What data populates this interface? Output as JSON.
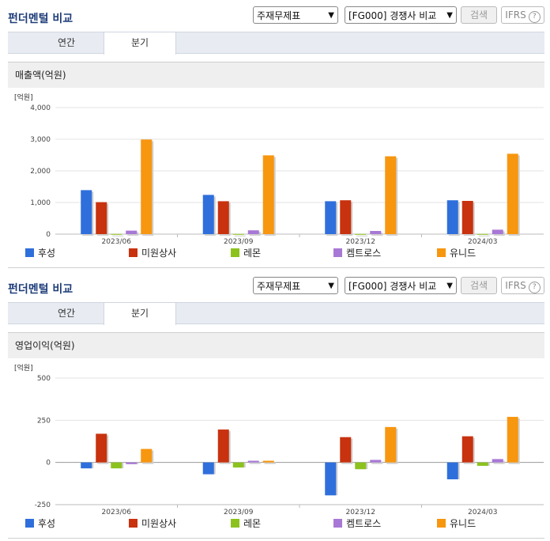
{
  "header": {
    "title": "펀더멘털 비교",
    "select_1": "주재무제표",
    "select_2": "[FG000] 경쟁사 비교",
    "search_label": "검색",
    "ifrs_label": "IFRS"
  },
  "tabs": [
    "연간",
    "분기"
  ],
  "colors": [
    "#2f6fdc",
    "#c8320f",
    "#8cc21e",
    "#a878d6",
    "#f7960f"
  ],
  "chart_data": [
    {
      "type": "bar",
      "title": "매출액(억원)",
      "unit_label": "[억원]",
      "categories": [
        "2023/06",
        "2023/09",
        "2023/12",
        "2024/03"
      ],
      "series": [
        {
          "name": "후성",
          "values": [
            1390,
            1240,
            1040,
            1070
          ]
        },
        {
          "name": "미원상사",
          "values": [
            1010,
            1040,
            1070,
            1050
          ]
        },
        {
          "name": "레몬",
          "values": [
            5,
            5,
            5,
            5
          ]
        },
        {
          "name": "켐트로스",
          "values": [
            110,
            120,
            100,
            140
          ]
        },
        {
          "name": "유니드",
          "values": [
            2990,
            2490,
            2460,
            2540
          ]
        }
      ],
      "ylim": [
        0,
        4000
      ],
      "yticks": [
        "4,000",
        "3,000",
        "2,000",
        "1,000",
        "0"
      ],
      "grid": true,
      "legend": "bottom"
    },
    {
      "type": "bar",
      "title": "영업이익(억원)",
      "unit_label": "[억원]",
      "categories": [
        "2023/06",
        "2023/09",
        "2023/12",
        "2024/03"
      ],
      "series": [
        {
          "name": "후성",
          "values": [
            -35,
            -70,
            -195,
            -100
          ]
        },
        {
          "name": "미원상사",
          "values": [
            170,
            195,
            150,
            155
          ]
        },
        {
          "name": "레몬",
          "values": [
            -35,
            -30,
            -40,
            -20
          ]
        },
        {
          "name": "켐트로스",
          "values": [
            -10,
            10,
            15,
            20
          ]
        },
        {
          "name": "유니드",
          "values": [
            80,
            10,
            210,
            270
          ]
        }
      ],
      "ylim": [
        -250,
        500
      ],
      "yticks": [
        "500",
        "250",
        "0",
        "-250"
      ],
      "grid": true,
      "legend": "bottom"
    }
  ]
}
